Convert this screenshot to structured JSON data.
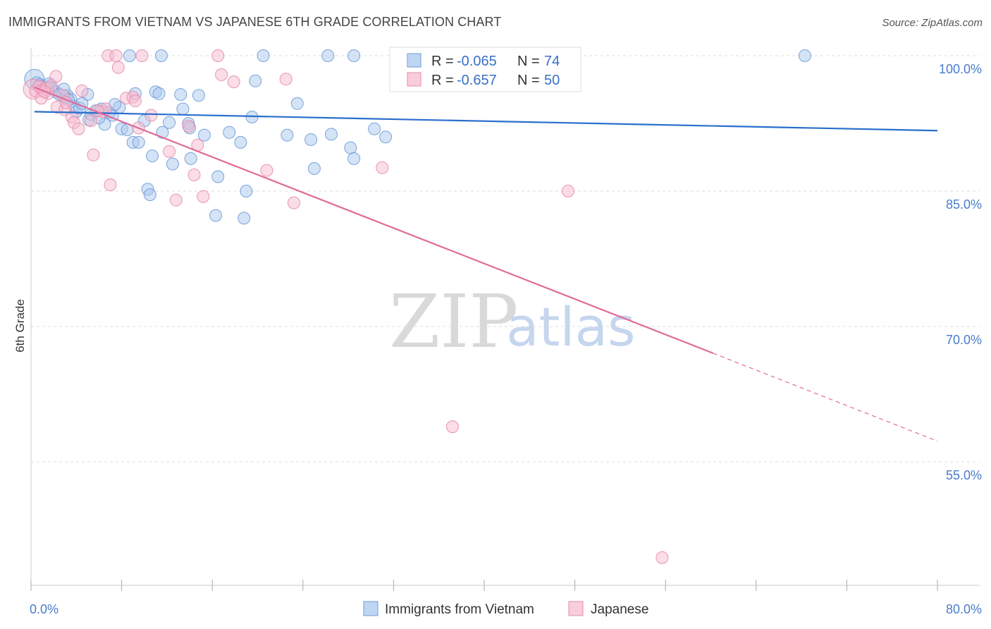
{
  "title": "IMMIGRANTS FROM VIETNAM VS JAPANESE 6TH GRADE CORRELATION CHART",
  "source": "Source: ZipAtlas.com",
  "watermark": {
    "zip": "ZIP",
    "atlas": "atlas"
  },
  "colors": {
    "blue_fill": "#aac8ee",
    "blue_stroke": "#6f9bd8",
    "blue_line": "#2a6fcc",
    "pink_fill": "#f6bcd0",
    "pink_stroke": "#e88aaa",
    "pink_line": "#e06a98",
    "grid": "#dddddd",
    "axis_text": "#4a7cc9"
  },
  "legend": {
    "r_label": "R =",
    "n_label": "N =",
    "series": [
      {
        "r": "-0.065",
        "n": "74"
      },
      {
        "r": "-0.657",
        "n": "50"
      }
    ]
  },
  "chart_data": {
    "type": "scatter",
    "ylabel": "6th Grade",
    "xlim": [
      0,
      80
    ],
    "ylim": [
      40,
      101
    ],
    "x_tick_labels": [
      "0.0%",
      "80.0%"
    ],
    "y_ticks": [
      100,
      85,
      70,
      55
    ],
    "y_tick_labels": [
      "100.0%",
      "85.0%",
      "70.0%",
      "55.0%"
    ],
    "grid": true,
    "legend_position": "top-center",
    "series": [
      {
        "name": "Immigrants from Vietnam",
        "color": "#aac8ee",
        "trend": {
          "x0": 0.3,
          "y0": 93.8,
          "x1": 80,
          "y1": 91.7,
          "dash_from": null
        },
        "points": [
          [
            0.3,
            97.4
          ],
          [
            0.5,
            97.0
          ],
          [
            0.8,
            96.8
          ],
          [
            1.0,
            96.6
          ],
          [
            1.2,
            96.2
          ],
          [
            1.5,
            96.5
          ],
          [
            1.8,
            96.4
          ],
          [
            2.2,
            96.0
          ],
          [
            2.5,
            95.7
          ],
          [
            3.0,
            95.4
          ],
          [
            3.2,
            95.6
          ],
          [
            3.5,
            95.2
          ],
          [
            3.8,
            94.4
          ],
          [
            4.0,
            93.8
          ],
          [
            4.3,
            94.2
          ],
          [
            5.0,
            95.7
          ],
          [
            5.1,
            92.9
          ],
          [
            5.3,
            93.5
          ],
          [
            5.7,
            93.9
          ],
          [
            6.2,
            94.1
          ],
          [
            6.5,
            92.4
          ],
          [
            6.9,
            93.7
          ],
          [
            7.2,
            93.4
          ],
          [
            7.8,
            94.3
          ],
          [
            8.0,
            91.9
          ],
          [
            8.5,
            91.8
          ],
          [
            9.0,
            90.4
          ],
          [
            9.2,
            95.8
          ],
          [
            9.5,
            90.4
          ],
          [
            10.0,
            92.8
          ],
          [
            10.3,
            85.2
          ],
          [
            10.5,
            84.6
          ],
          [
            10.7,
            88.9
          ],
          [
            11.0,
            96.0
          ],
          [
            11.3,
            95.8
          ],
          [
            11.6,
            91.5
          ],
          [
            12.5,
            88.0
          ],
          [
            13.2,
            95.7
          ],
          [
            13.4,
            94.1
          ],
          [
            13.9,
            92.5
          ],
          [
            14.0,
            92.0
          ],
          [
            14.1,
            88.6
          ],
          [
            14.8,
            95.6
          ],
          [
            16.3,
            82.3
          ],
          [
            16.5,
            86.6
          ],
          [
            17.5,
            91.5
          ],
          [
            18.5,
            90.4
          ],
          [
            18.8,
            82.0
          ],
          [
            19.0,
            85.0
          ],
          [
            19.5,
            93.2
          ],
          [
            19.8,
            97.2
          ],
          [
            22.6,
            91.2
          ],
          [
            23.5,
            94.7
          ],
          [
            24.7,
            90.7
          ],
          [
            25.0,
            87.5
          ],
          [
            26.5,
            91.3
          ],
          [
            28.2,
            89.8
          ],
          [
            28.5,
            88.6
          ],
          [
            30.3,
            91.9
          ],
          [
            31.3,
            91.0
          ],
          [
            8.7,
            100.0
          ],
          [
            11.5,
            100.0
          ],
          [
            20.5,
            100.0
          ],
          [
            26.2,
            100.0
          ],
          [
            28.5,
            100.0
          ],
          [
            68.3,
            100.0
          ],
          [
            2.9,
            96.3
          ],
          [
            3.3,
            95.1
          ],
          [
            4.5,
            94.7
          ],
          [
            7.4,
            94.6
          ],
          [
            12.2,
            92.6
          ],
          [
            15.3,
            91.2
          ],
          [
            1.6,
            96.9
          ],
          [
            6.0,
            93.1
          ]
        ]
      },
      {
        "name": "Japanese",
        "color": "#f6bcd0",
        "trend": {
          "x0": 0.3,
          "y0": 96.5,
          "x1": 80,
          "y1": 57.3,
          "dash_from": 60.2
        },
        "points": [
          [
            0.2,
            96.3
          ],
          [
            0.4,
            96.1
          ],
          [
            0.7,
            96.6
          ],
          [
            1.0,
            96.2
          ],
          [
            1.3,
            96.4
          ],
          [
            1.5,
            95.8
          ],
          [
            1.8,
            96.7
          ],
          [
            2.2,
            97.7
          ],
          [
            2.3,
            94.3
          ],
          [
            2.8,
            95.6
          ],
          [
            3.0,
            94.0
          ],
          [
            3.6,
            93.2
          ],
          [
            3.8,
            92.6
          ],
          [
            4.2,
            91.9
          ],
          [
            4.5,
            96.1
          ],
          [
            5.3,
            92.8
          ],
          [
            5.5,
            89.0
          ],
          [
            6.3,
            93.8
          ],
          [
            6.6,
            94.1
          ],
          [
            7.0,
            85.7
          ],
          [
            7.7,
            98.7
          ],
          [
            8.4,
            95.3
          ],
          [
            9.0,
            95.4
          ],
          [
            9.5,
            92.0
          ],
          [
            10.6,
            93.4
          ],
          [
            12.2,
            89.4
          ],
          [
            12.8,
            84.0
          ],
          [
            13.9,
            92.2
          ],
          [
            14.4,
            86.8
          ],
          [
            14.7,
            90.1
          ],
          [
            15.2,
            84.4
          ],
          [
            16.8,
            97.9
          ],
          [
            17.9,
            97.1
          ],
          [
            20.8,
            87.3
          ],
          [
            22.5,
            97.4
          ],
          [
            23.2,
            83.7
          ],
          [
            31.0,
            87.6
          ],
          [
            37.2,
            58.9
          ],
          [
            47.4,
            85.0
          ],
          [
            55.7,
            44.4
          ],
          [
            6.8,
            100.0
          ],
          [
            7.5,
            100.0
          ],
          [
            9.8,
            100.0
          ],
          [
            16.5,
            100.0
          ],
          [
            37.2,
            100.0
          ],
          [
            0.9,
            95.3
          ],
          [
            1.2,
            96.0
          ],
          [
            3.1,
            94.8
          ],
          [
            5.9,
            93.9
          ],
          [
            9.2,
            95.0
          ]
        ]
      }
    ]
  }
}
